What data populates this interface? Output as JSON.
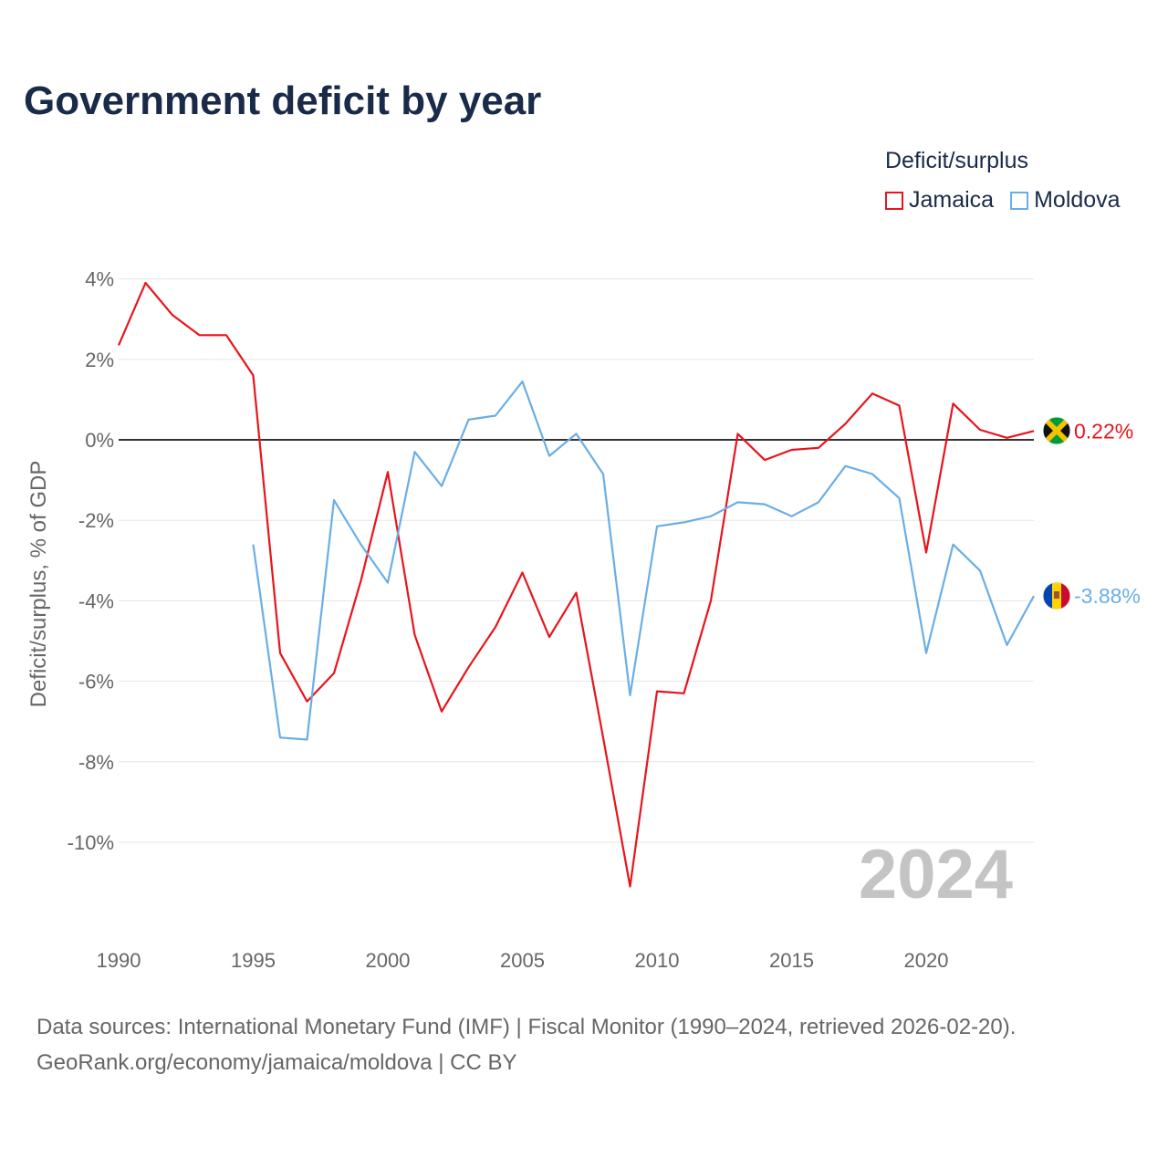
{
  "title": "Government deficit by year",
  "legend": {
    "title": "Deficit/surplus",
    "items": [
      {
        "name": "Jamaica",
        "color": "#e8141c"
      },
      {
        "name": "Moldova",
        "color": "#6aaee6"
      }
    ]
  },
  "footer": {
    "line1": "Data sources: International Monetary Fund (IMF) | Fiscal Monitor (1990–2024, retrieved 2026-02-20).",
    "line2": "GeoRank.org/economy/jamaica/moldova | CC BY"
  },
  "chart_data": {
    "type": "line",
    "title": "Government deficit by year",
    "xlabel": "",
    "ylabel": "Deficit/surplus, % of GDP",
    "xlim": [
      1990,
      2024
    ],
    "ylim": [
      -12,
      4.5
    ],
    "yticks": [
      4,
      2,
      0,
      -2,
      -4,
      -6,
      -8,
      -10
    ],
    "ytick_labels": [
      "4%",
      "2%",
      "0%",
      "-2%",
      "-4%",
      "-6%",
      "-8%",
      "-10%"
    ],
    "xticks": [
      1990,
      1995,
      2000,
      2005,
      2010,
      2015,
      2020
    ],
    "xtick_labels": [
      "1990",
      "1995",
      "2000",
      "2005",
      "2010",
      "2015",
      "2020"
    ],
    "year_watermark": "2024",
    "x": [
      1990,
      1991,
      1992,
      1993,
      1994,
      1995,
      1996,
      1997,
      1998,
      1999,
      2000,
      2001,
      2002,
      2003,
      2004,
      2005,
      2006,
      2007,
      2008,
      2009,
      2010,
      2011,
      2012,
      2013,
      2014,
      2015,
      2016,
      2017,
      2018,
      2019,
      2020,
      2021,
      2022,
      2023,
      2024
    ],
    "series": [
      {
        "name": "Jamaica",
        "color": "#e8141c",
        "end_label": "0.22%",
        "values": [
          2.35,
          3.9,
          3.1,
          2.6,
          2.6,
          1.6,
          -5.3,
          -6.5,
          -5.8,
          -3.5,
          -0.8,
          -4.85,
          -6.75,
          -5.65,
          -4.65,
          -3.3,
          -4.9,
          -3.8,
          -7.4,
          -11.1,
          -6.25,
          -6.3,
          -4.0,
          0.15,
          -0.5,
          -0.25,
          -0.2,
          0.4,
          1.15,
          0.85,
          -2.8,
          0.9,
          0.25,
          0.05,
          0.22
        ]
      },
      {
        "name": "Moldova",
        "color": "#6aaee6",
        "end_label": "-3.88%",
        "values": [
          null,
          null,
          null,
          null,
          null,
          -2.6,
          -7.4,
          -7.45,
          -1.5,
          -2.6,
          -3.55,
          -0.3,
          -1.15,
          0.5,
          0.6,
          1.45,
          -0.4,
          0.15,
          -0.85,
          -6.35,
          -2.15,
          -2.05,
          -1.9,
          -1.55,
          -1.6,
          -1.9,
          -1.55,
          -0.65,
          -0.85,
          -1.45,
          -5.3,
          -2.6,
          -3.25,
          -5.1,
          -3.88
        ]
      }
    ]
  }
}
